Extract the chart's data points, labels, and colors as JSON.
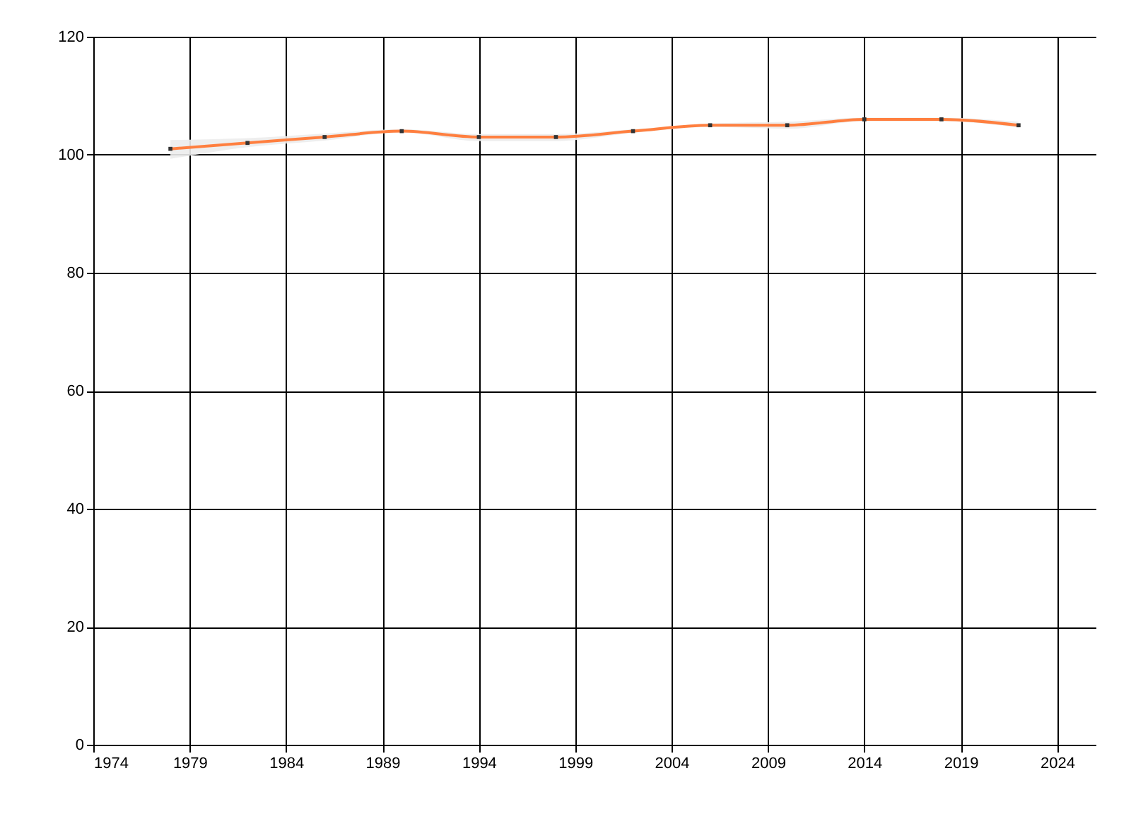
{
  "chart_data": {
    "type": "line",
    "x": [
      1978,
      1982,
      1986,
      1990,
      1994,
      1998,
      2002,
      2006,
      2010,
      2014,
      2018,
      2022
    ],
    "series": [
      {
        "color": "#ff7f3f",
        "values": [
          101,
          102,
          103,
          104,
          103,
          103,
          104,
          105,
          105,
          106,
          106,
          105
        ],
        "lower": [
          99.3,
          101.3,
          102.4,
          103.8,
          102.3,
          102.3,
          103.7,
          104.7,
          104.4,
          105.7,
          105.7,
          104.6
        ],
        "upper": [
          102.5,
          102.8,
          103.6,
          104.3,
          103.5,
          103.5,
          104.3,
          105.3,
          105.6,
          106.3,
          106.3,
          105.6
        ]
      }
    ],
    "xlim": [
      1974,
      2026
    ],
    "xticks": [
      1974,
      1979,
      1984,
      1989,
      1994,
      1999,
      2004,
      2009,
      2014,
      2019,
      2024
    ],
    "ylim": [
      0,
      120
    ],
    "yticks": [
      0,
      20,
      40,
      60,
      80,
      100,
      120
    ],
    "grid": true,
    "marker": "square",
    "line_style": "solid"
  }
}
